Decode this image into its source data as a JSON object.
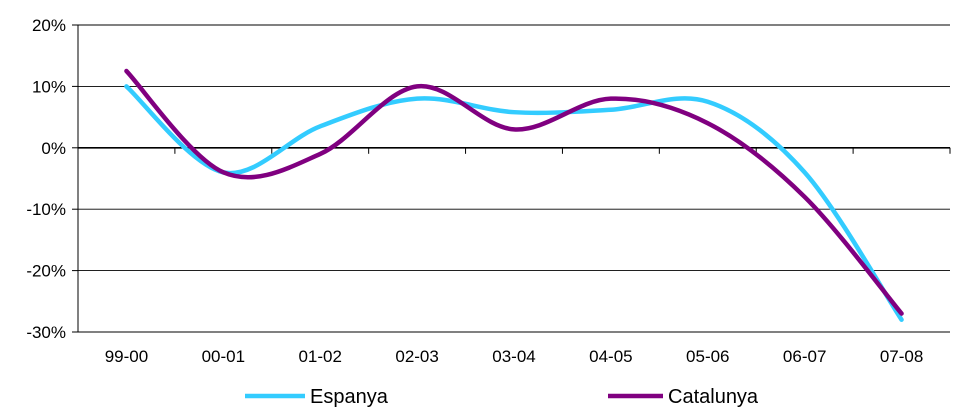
{
  "chart_data": {
    "type": "line",
    "categories": [
      "99-00",
      "00-01",
      "01-02",
      "02-03",
      "03-04",
      "04-05",
      "05-06",
      "06-07",
      "07-08"
    ],
    "series": [
      {
        "name": "Espanya",
        "color": "#33CCFF",
        "values": [
          10,
          -4,
          3.5,
          8,
          5.8,
          6.2,
          7.5,
          -4,
          -28
        ]
      },
      {
        "name": "Catalunya",
        "color": "#800080",
        "values": [
          12.5,
          -4,
          -1,
          10,
          3,
          8,
          4,
          -8,
          -27
        ]
      }
    ],
    "y_ticks": [
      "-30%",
      "-20%",
      "-10%",
      "0%",
      "10%",
      "20%"
    ],
    "ylim": [
      -30,
      20
    ],
    "y_unit": "%",
    "grid": "horizontal",
    "legend_position": "bottom"
  }
}
